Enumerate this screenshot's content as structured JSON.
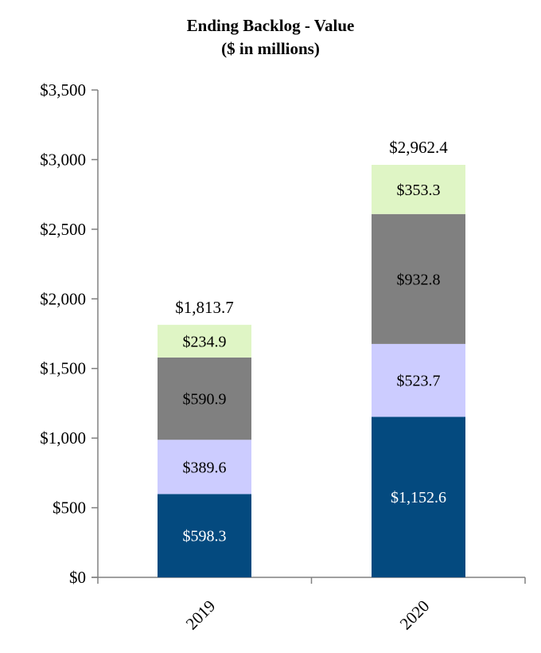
{
  "chart_data": {
    "type": "bar",
    "stacked": true,
    "title": "Ending Backlog - Value",
    "subtitle": "($ in millions)",
    "categories": [
      "2019",
      "2020"
    ],
    "series": [
      {
        "name": "segment-1",
        "color": "#044a7f",
        "label_color": "#ffffff",
        "values": [
          598.3,
          1152.6
        ],
        "labels": [
          "$598.3",
          "$1,152.6"
        ]
      },
      {
        "name": "segment-2",
        "color": "#ccccff",
        "label_color": "#000000",
        "values": [
          389.6,
          523.7
        ],
        "labels": [
          "$389.6",
          "$523.7"
        ]
      },
      {
        "name": "segment-3",
        "color": "#808080",
        "label_color": "#000000",
        "values": [
          590.9,
          932.8
        ],
        "labels": [
          "$590.9",
          "$932.8"
        ]
      },
      {
        "name": "segment-4",
        "color": "#dff5c5",
        "label_color": "#000000",
        "values": [
          234.9,
          353.3
        ],
        "labels": [
          "$234.9",
          "$353.3"
        ]
      }
    ],
    "totals": [
      1813.7,
      2962.4
    ],
    "total_labels": [
      "$1,813.7",
      "$2,962.4"
    ],
    "ylim": [
      0,
      3500
    ],
    "yticks": [
      0,
      500,
      1000,
      1500,
      2000,
      2500,
      3000,
      3500
    ],
    "ytick_labels": [
      "$0",
      "$500",
      "$1,000",
      "$1,500",
      "$2,000",
      "$2,500",
      "$3,000",
      "$3,500"
    ],
    "xlabel": "",
    "ylabel": "",
    "grid": false,
    "legend": "none"
  }
}
